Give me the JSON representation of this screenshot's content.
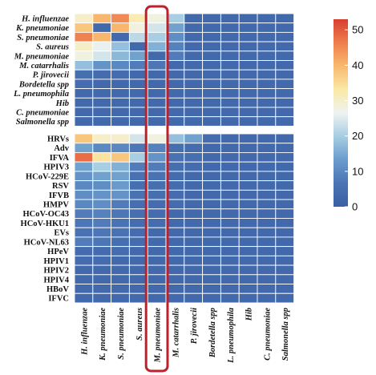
{
  "chart_data": {
    "type": "heatmap",
    "columns": [
      "H. influenzae",
      "K. pneumoniae",
      "S. pneumoniae",
      "S. aureus",
      "M. pneumoniae",
      "M. catarrhalis",
      "P. jirovecii",
      "Bordetella spp",
      "L. pneumophila",
      "Hib",
      "C. pneumoniae",
      "Salmonella spp"
    ],
    "top_rows": [
      "H. influenzae",
      "K. pneumoniae",
      "S. pneumoniae",
      "S. aureus",
      "M. pneumoniae",
      "M. catarrhalis",
      "P. jirovecii",
      "Bordetella spp",
      "L. pneumophila",
      "Hib",
      "C. pneumoniae",
      "Salmonella spp"
    ],
    "top_values": [
      [
        30,
        40,
        45,
        32,
        28,
        20,
        3,
        3,
        3,
        3,
        3,
        3
      ],
      [
        38,
        3,
        40,
        28,
        24,
        14,
        3,
        3,
        3,
        3,
        3,
        3
      ],
      [
        46,
        40,
        3,
        22,
        20,
        11,
        3,
        3,
        3,
        3,
        3,
        3
      ],
      [
        30,
        26,
        18,
        3,
        16,
        9,
        3,
        3,
        3,
        3,
        3,
        3
      ],
      [
        28,
        24,
        17,
        14,
        3,
        8,
        3,
        3,
        3,
        3,
        3,
        3
      ],
      [
        18,
        12,
        10,
        8,
        7,
        3,
        3,
        3,
        3,
        3,
        3,
        3
      ],
      [
        5,
        4,
        4,
        3,
        3,
        3,
        3,
        3,
        3,
        3,
        3,
        3
      ],
      [
        4,
        3,
        3,
        3,
        3,
        3,
        3,
        3,
        3,
        3,
        3,
        3
      ],
      [
        3,
        3,
        3,
        3,
        3,
        3,
        3,
        3,
        3,
        3,
        3,
        3
      ],
      [
        3,
        3,
        3,
        3,
        3,
        3,
        3,
        3,
        3,
        3,
        3,
        3
      ],
      [
        3,
        3,
        3,
        3,
        3,
        3,
        3,
        3,
        3,
        3,
        3,
        3
      ],
      [
        3,
        3,
        3,
        3,
        3,
        3,
        3,
        3,
        3,
        3,
        3,
        3
      ]
    ],
    "bottom_rows": [
      "HRVs",
      "Adv",
      "IFVA",
      "HPIV3",
      "HCoV-229E",
      "RSV",
      "IFVB",
      "HMPV",
      "HCoV-OC43",
      "HCoV-HKU1",
      "EVs",
      "HCoV-NL63",
      "HPeV",
      "HPIV1",
      "HPIV2",
      "HPIV4",
      "HBoV",
      "IFVC"
    ],
    "bottom_values": [
      [
        38,
        30,
        30,
        24,
        28,
        18,
        14,
        4,
        3,
        3,
        3,
        3
      ],
      [
        14,
        10,
        10,
        7,
        9,
        5,
        4,
        3,
        3,
        3,
        3,
        3
      ],
      [
        48,
        34,
        38,
        20,
        12,
        6,
        5,
        3,
        3,
        3,
        3,
        3
      ],
      [
        14,
        20,
        16,
        8,
        8,
        5,
        4,
        3,
        3,
        3,
        3,
        3
      ],
      [
        12,
        14,
        14,
        6,
        6,
        4,
        3,
        3,
        3,
        3,
        3,
        3
      ],
      [
        10,
        11,
        13,
        5,
        5,
        4,
        3,
        3,
        3,
        3,
        3,
        3
      ],
      [
        11,
        12,
        12,
        6,
        5,
        4,
        3,
        3,
        3,
        3,
        3,
        3
      ],
      [
        10,
        11,
        8,
        5,
        4,
        4,
        3,
        3,
        3,
        3,
        3,
        3
      ],
      [
        8,
        9,
        7,
        5,
        4,
        3,
        3,
        3,
        3,
        3,
        3,
        3
      ],
      [
        7,
        8,
        6,
        4,
        4,
        3,
        3,
        3,
        3,
        3,
        3,
        3
      ],
      [
        6,
        7,
        6,
        4,
        3,
        3,
        3,
        3,
        3,
        3,
        3,
        3
      ],
      [
        8,
        7,
        5,
        4,
        3,
        3,
        3,
        3,
        3,
        3,
        3,
        3
      ],
      [
        4,
        4,
        4,
        3,
        3,
        3,
        3,
        3,
        3,
        3,
        3,
        3
      ],
      [
        4,
        4,
        3,
        3,
        3,
        3,
        3,
        3,
        3,
        3,
        3,
        3
      ],
      [
        3,
        3,
        3,
        3,
        3,
        3,
        3,
        3,
        3,
        3,
        3,
        3
      ],
      [
        3,
        3,
        3,
        3,
        3,
        3,
        3,
        3,
        3,
        3,
        3,
        3
      ],
      [
        3,
        3,
        3,
        3,
        3,
        3,
        3,
        3,
        3,
        3,
        3,
        3
      ],
      [
        3,
        3,
        3,
        3,
        3,
        3,
        3,
        3,
        3,
        3,
        3,
        3
      ]
    ],
    "italic_top_rows": true,
    "italic_columns": true,
    "highlight_column": "M. pneumoniae",
    "highlight_color": "#c0202a",
    "colorbar": {
      "ticks": [
        0,
        10,
        20,
        30,
        40,
        50
      ],
      "min": 0,
      "max": 53,
      "colors": [
        "#3a5fa4",
        "#4a74b4",
        "#6a9ccc",
        "#a6cde2",
        "#eef3f1",
        "#fbe9a6",
        "#f8b96e",
        "#ef7e4e",
        "#d83e2e"
      ]
    },
    "grid": true,
    "legend_position": "right"
  }
}
